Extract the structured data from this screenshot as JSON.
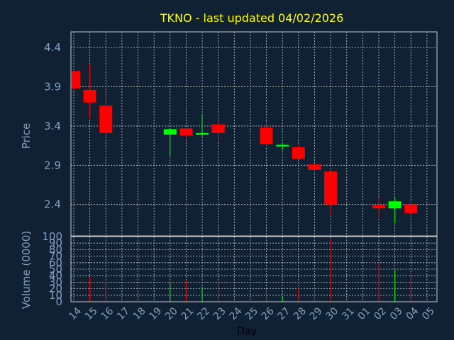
{
  "chart_data": [
    {
      "type": "candlestick",
      "title": "TKNO - last updated 04/02/2026",
      "xlabel": "",
      "ylabel": "Price",
      "ylim": [
        2.0,
        4.6
      ],
      "yticks": [
        2.4,
        2.9,
        3.4,
        3.9,
        4.4
      ],
      "grid": true,
      "up_color": "#00ff00",
      "down_color": "#ff0000",
      "x": [
        "14",
        "15",
        "16",
        "17",
        "18",
        "19",
        "20",
        "21",
        "22",
        "23",
        "24",
        "25",
        "26",
        "27",
        "28",
        "29",
        "30",
        "31",
        "01",
        "02",
        "03",
        "04",
        "05"
      ],
      "candles": [
        {
          "day": "14",
          "open": 4.1,
          "high": 4.1,
          "low": 3.85,
          "close": 3.88
        },
        {
          "day": "15",
          "open": 3.86,
          "high": 4.19,
          "low": 3.5,
          "close": 3.7
        },
        {
          "day": "16",
          "open": 3.66,
          "high": 3.8,
          "low": 3.27,
          "close": 3.31
        },
        {
          "day": "20",
          "open": 3.29,
          "high": 3.37,
          "low": 3.02,
          "close": 3.36
        },
        {
          "day": "21",
          "open": 3.37,
          "high": 3.37,
          "low": 3.25,
          "close": 3.28
        },
        {
          "day": "22",
          "open": 3.29,
          "high": 3.54,
          "low": 3.26,
          "close": 3.31
        },
        {
          "day": "23",
          "open": 3.42,
          "high": 3.52,
          "low": 3.2,
          "close": 3.31
        },
        {
          "day": "26",
          "open": 3.38,
          "high": 3.46,
          "low": 3.13,
          "close": 3.17
        },
        {
          "day": "27",
          "open": 3.14,
          "high": 3.18,
          "low": 3.09,
          "close": 3.16
        },
        {
          "day": "28",
          "open": 3.13,
          "high": 3.16,
          "low": 2.98,
          "close": 2.98
        },
        {
          "day": "29",
          "open": 2.91,
          "high": 2.92,
          "low": 2.8,
          "close": 2.84
        },
        {
          "day": "30",
          "open": 2.82,
          "high": 2.82,
          "low": 2.27,
          "close": 2.4
        },
        {
          "day": "02",
          "open": 2.39,
          "high": 2.48,
          "low": 2.23,
          "close": 2.35
        },
        {
          "day": "03",
          "open": 2.35,
          "high": 2.49,
          "low": 2.16,
          "close": 2.44
        },
        {
          "day": "04",
          "open": 2.4,
          "high": 2.43,
          "low": 2.23,
          "close": 2.29
        }
      ]
    },
    {
      "type": "bar",
      "xlabel": "Day",
      "ylabel": "Volume (0000)",
      "ylim": [
        0,
        100
      ],
      "yticks": [
        0,
        10,
        20,
        30,
        40,
        50,
        60,
        70,
        80,
        90,
        100
      ],
      "grid": true,
      "categories": [
        "14",
        "15",
        "16",
        "17",
        "18",
        "19",
        "20",
        "21",
        "22",
        "23",
        "24",
        "25",
        "26",
        "27",
        "28",
        "29",
        "30",
        "31",
        "01",
        "02",
        "03",
        "04",
        "05"
      ],
      "values": [
        0,
        38,
        29,
        0,
        0,
        0,
        28,
        32,
        23,
        30,
        0,
        0,
        19,
        8,
        21,
        21,
        97,
        0,
        0,
        60,
        49,
        43,
        0
      ],
      "direction": [
        "",
        "down",
        "down",
        "",
        "",
        "",
        "up",
        "down",
        "up",
        "down",
        "",
        "",
        "down",
        "up",
        "down",
        "down",
        "down",
        "",
        "",
        "down",
        "up",
        "down",
        ""
      ]
    }
  ],
  "colors": {
    "background": "#0f2133",
    "grid": "#c8c8c8",
    "title": "#ffff00",
    "axis_label": "#7fa0c0",
    "tick_label": "#7fa0c0",
    "x_label": "#000000"
  }
}
